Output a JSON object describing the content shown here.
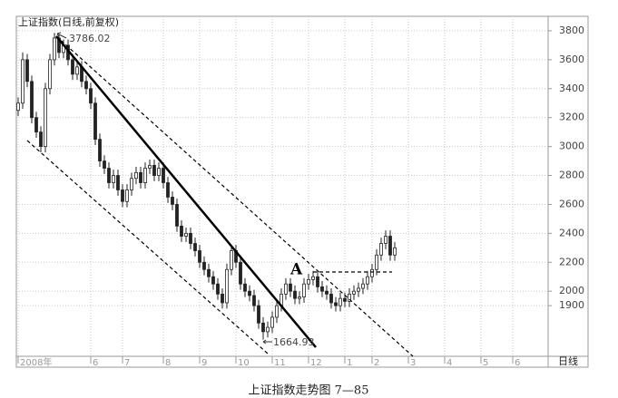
{
  "chart_data": {
    "type": "candlestick",
    "title": "上证指数(日线,前复权)",
    "caption": "上证指数走势图 7—85",
    "period_label": "日线",
    "annotations": [
      "3786.02",
      "1664.93",
      "A"
    ],
    "color": "#222222",
    "grid": true,
    "xlim": [
      -0.4,
      116.8
    ],
    "xticks": [
      {
        "value": 0,
        "label": "2008年"
      },
      {
        "value": 16,
        "label": "6"
      },
      {
        "value": 23,
        "label": "7"
      },
      {
        "value": 32,
        "label": "8"
      },
      {
        "value": 40,
        "label": "9"
      },
      {
        "value": 48,
        "label": "10"
      },
      {
        "value": 56,
        "label": "11"
      },
      {
        "value": 64,
        "label": "12"
      },
      {
        "value": 72,
        "label": "1"
      },
      {
        "value": 78,
        "label": "2"
      },
      {
        "value": 86,
        "label": "3"
      },
      {
        "value": 94,
        "label": "4"
      },
      {
        "value": 102,
        "label": "5"
      },
      {
        "value": 109,
        "label": "6"
      }
    ],
    "ylim": [
      1550,
      3900
    ],
    "yticks": [
      1900,
      2000,
      2200,
      2400,
      2600,
      2800,
      3000,
      3200,
      3400,
      3600,
      3800
    ],
    "open": [
      3250,
      3300,
      3600,
      3450,
      3200,
      3100,
      3000,
      3400,
      3600,
      3750,
      3650,
      3700,
      3600,
      3500,
      3550,
      3450,
      3400,
      3300,
      3050,
      2900,
      2850,
      2750,
      2800,
      2700,
      2620,
      2700,
      2780,
      2820,
      2750,
      2850,
      2870,
      2800,
      2850,
      2750,
      2650,
      2600,
      2450,
      2380,
      2400,
      2330,
      2280,
      2200,
      2150,
      2100,
      2050,
      1980,
      1920,
      2150,
      2280,
      2200,
      2050,
      2000,
      1970,
      1900,
      1780,
      1720,
      1750,
      1820,
      1900,
      1980,
      2050,
      2000,
      1950,
      1960,
      2050,
      2080,
      2100,
      2030,
      2000,
      1980,
      1920,
      1900,
      1950,
      1930,
      1980,
      2000,
      2020,
      2050,
      2100,
      2150,
      2250,
      2330,
      2380,
      2250
    ],
    "high": [
      3340,
      3650,
      3640,
      3490,
      3240,
      3140,
      3440,
      3640,
      3786.02,
      3770,
      3740,
      3740,
      3640,
      3590,
      3590,
      3490,
      3440,
      3340,
      3090,
      2940,
      2890,
      2840,
      2840,
      2740,
      2740,
      2820,
      2860,
      2860,
      2890,
      2910,
      2910,
      2890,
      2890,
      2790,
      2690,
      2640,
      2490,
      2440,
      2440,
      2370,
      2320,
      2240,
      2190,
      2140,
      2090,
      2020,
      2190,
      2320,
      2320,
      2240,
      2090,
      2040,
      2010,
      1940,
      1820,
      1790,
      1860,
      1940,
      2020,
      2090,
      2090,
      2040,
      2000,
      2090,
      2120,
      2140,
      2140,
      2070,
      2040,
      2020,
      1960,
      1990,
      1990,
      2020,
      2040,
      2060,
      2090,
      2140,
      2190,
      2290,
      2370,
      2420,
      2420,
      2340
    ],
    "low": [
      3210,
      3260,
      3410,
      3160,
      3060,
      2960,
      2960,
      3360,
      3560,
      3610,
      3610,
      3560,
      3460,
      3460,
      3410,
      3360,
      3260,
      3010,
      2860,
      2810,
      2710,
      2710,
      2660,
      2580,
      2580,
      2660,
      2740,
      2710,
      2710,
      2810,
      2760,
      2760,
      2710,
      2610,
      2560,
      2410,
      2340,
      2340,
      2290,
      2240,
      2160,
      2110,
      2060,
      2010,
      1940,
      1880,
      1880,
      2110,
      2160,
      2010,
      1960,
      1930,
      1860,
      1740,
      1664.93,
      1680,
      1710,
      1780,
      1860,
      1940,
      1960,
      1910,
      1910,
      1920,
      2010,
      2040,
      1990,
      1960,
      1940,
      1880,
      1860,
      1860,
      1890,
      1890,
      1940,
      1960,
      1980,
      2010,
      2060,
      2110,
      2210,
      2290,
      2210,
      2210
    ],
    "close": [
      3300,
      3600,
      3450,
      3200,
      3100,
      3000,
      3400,
      3600,
      3750,
      3650,
      3700,
      3600,
      3500,
      3550,
      3450,
      3400,
      3300,
      3050,
      2900,
      2850,
      2750,
      2800,
      2700,
      2620,
      2700,
      2780,
      2820,
      2750,
      2850,
      2870,
      2800,
      2850,
      2750,
      2650,
      2600,
      2450,
      2380,
      2400,
      2330,
      2280,
      2200,
      2150,
      2100,
      2050,
      1980,
      1920,
      2150,
      2280,
      2200,
      2050,
      2000,
      1970,
      1900,
      1780,
      1720,
      1750,
      1820,
      1900,
      1980,
      2050,
      2000,
      1950,
      1960,
      2050,
      2080,
      2100,
      2030,
      2000,
      1980,
      1920,
      1900,
      1950,
      1930,
      1980,
      2000,
      2020,
      2050,
      2100,
      2150,
      2250,
      2330,
      2380,
      2250,
      2300
    ]
  }
}
